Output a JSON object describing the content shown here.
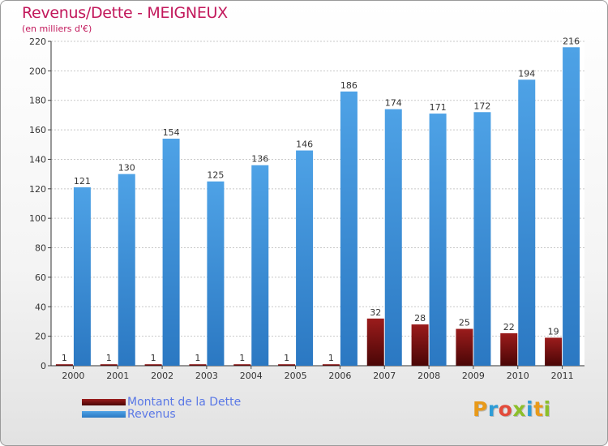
{
  "chart_data": {
    "type": "bar",
    "title": "Revenus/Dette - MEIGNEUX",
    "subtitle": "(en milliers d'€)",
    "categories": [
      "2000",
      "2001",
      "2002",
      "2003",
      "2004",
      "2005",
      "2006",
      "2007",
      "2008",
      "2009",
      "2010",
      "2011"
    ],
    "series": [
      {
        "name": "Montant de la Dette",
        "color": "#6b0d0d",
        "values": [
          1,
          1,
          1,
          1,
          1,
          1,
          1,
          32,
          28,
          25,
          22,
          19
        ]
      },
      {
        "name": "Revenus",
        "color": "#3d8fd8",
        "values": [
          121,
          130,
          154,
          125,
          136,
          146,
          186,
          174,
          171,
          172,
          194,
          216
        ]
      }
    ],
    "ylim": [
      0,
      220
    ],
    "yticks": [
      0,
      20,
      40,
      60,
      80,
      100,
      120,
      140,
      160,
      180,
      200,
      220
    ],
    "grid": true,
    "legend": "bottom-left"
  },
  "logo": {
    "letters": [
      "P",
      "r",
      "o",
      "x",
      "i",
      "t",
      "i"
    ],
    "colors": [
      "#e89a1a",
      "#2e9cd6",
      "#e34b3b",
      "#8cbf2a",
      "#2e9cd6",
      "#e89a1a",
      "#8cbf2a"
    ]
  }
}
